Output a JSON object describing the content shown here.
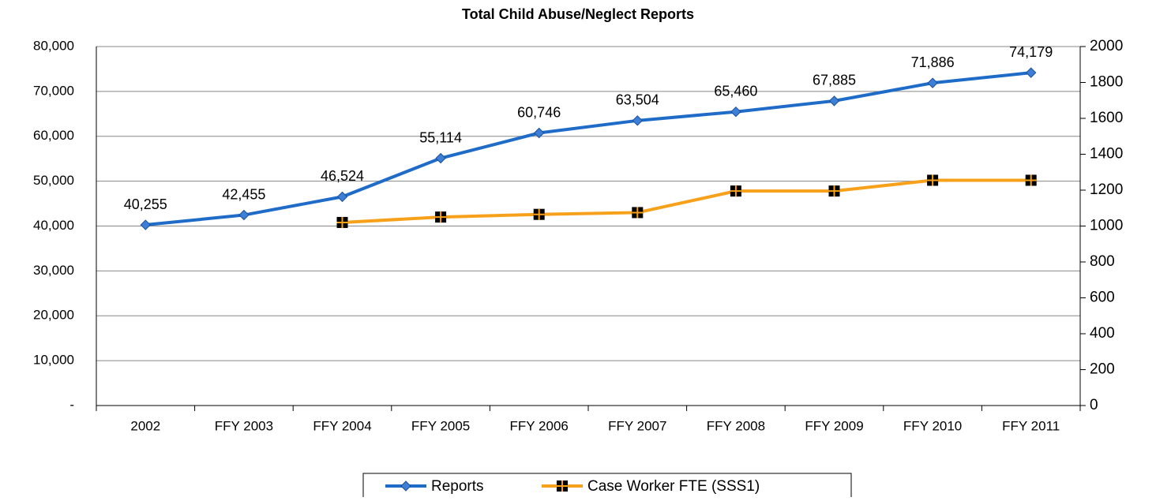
{
  "chart_data": {
    "type": "line",
    "title": "Total Child Abuse/Neglect Reports",
    "categories": [
      "2002",
      "FFY 2003",
      "FFY 2004",
      "FFY 2005",
      "FFY 2006",
      "FFY 2007",
      "FFY 2008",
      "FFY 2009",
      "FFY 2010",
      "FFY 2011"
    ],
    "series": [
      {
        "name": "Reports",
        "color": "#1f6cc8",
        "values": [
          40255,
          42455,
          46524,
          55114,
          60746,
          63504,
          65460,
          67885,
          71886,
          74179
        ],
        "value_labels": [
          "40,255",
          "42,455",
          "46,524",
          "55,114",
          "60,746",
          "63,504",
          "65,460",
          "67,885",
          "71,886",
          "74,179"
        ]
      },
      {
        "name": "Case Worker FTE (SSS1)",
        "color": "#f7a11a",
        "axis": "y2",
        "values": [
          null,
          null,
          1020,
          1050,
          1065,
          1075,
          1195,
          1195,
          1255,
          1255
        ]
      }
    ],
    "ylim": [
      0,
      80000
    ],
    "yticks": [
      {
        "value": 0,
        "label": "-"
      },
      {
        "value": 10000,
        "label": "10,000"
      },
      {
        "value": 20000,
        "label": "20,000"
      },
      {
        "value": 30000,
        "label": "30,000"
      },
      {
        "value": 40000,
        "label": "40,000"
      },
      {
        "value": 50000,
        "label": "50,000"
      },
      {
        "value": 60000,
        "label": "60,000"
      },
      {
        "value": 70000,
        "label": "70,000"
      },
      {
        "value": 80000,
        "label": "80,000"
      }
    ],
    "y2lim": [
      0,
      2000
    ],
    "y2ticks": [
      0,
      200,
      400,
      600,
      800,
      1000,
      1200,
      1400,
      1600,
      1800,
      2000
    ],
    "grid": true,
    "legend": "bottom"
  }
}
